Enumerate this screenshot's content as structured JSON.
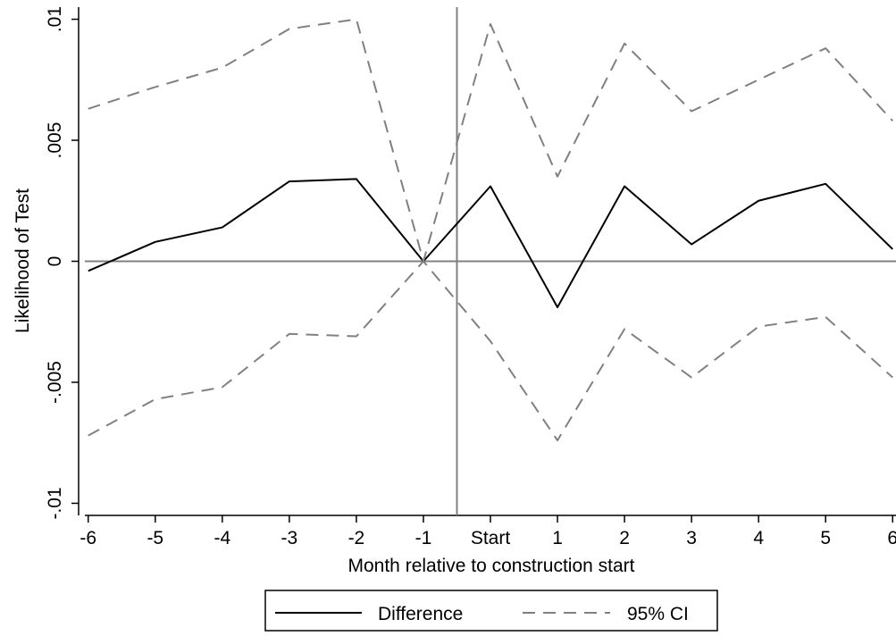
{
  "chart_data": {
    "type": "line",
    "xlabel": "Month relative to construction start",
    "ylabel": "Likelihood of Test",
    "x": [
      -6,
      -5,
      -4,
      -3,
      -2,
      -1,
      0,
      1,
      2,
      3,
      4,
      5,
      6
    ],
    "xtick_labels": [
      "-6",
      "-5",
      "-4",
      "-3",
      "-2",
      "-1",
      "Start",
      "1",
      "2",
      "3",
      "4",
      "5",
      "6"
    ],
    "ytick_values": [
      -0.01,
      -0.005,
      0,
      0.005,
      0.01
    ],
    "ytick_labels": [
      "-.01",
      "-.005",
      "0",
      ".005",
      ".01"
    ],
    "xlim": [
      -6.05,
      6.05
    ],
    "ylim": [
      -0.0105,
      0.0105
    ],
    "reference_lines": {
      "x": -0.5,
      "y": 0
    },
    "grid": false,
    "legend_position": "bottom",
    "series": [
      {
        "name": "Difference",
        "style": "solid",
        "color": "#000000",
        "values": [
          -0.0004,
          0.0008,
          0.0014,
          0.0033,
          0.0034,
          0.0,
          0.0031,
          -0.0019,
          0.0031,
          0.0007,
          0.0025,
          0.0032,
          0.0005
        ]
      },
      {
        "name": "95% CI",
        "style": "dashed",
        "color": "#808080",
        "values": [
          0.0063,
          0.0072,
          0.008,
          0.0096,
          0.01,
          0.0,
          0.0098,
          0.0035,
          0.009,
          0.0062,
          0.0075,
          0.0088,
          0.0058
        ]
      },
      {
        "style": "dashed",
        "color": "#808080",
        "values": [
          -0.0072,
          -0.0057,
          -0.0052,
          -0.003,
          -0.0031,
          0.0,
          -0.0033,
          -0.0074,
          -0.0028,
          -0.0048,
          -0.0027,
          -0.0023,
          -0.0048
        ]
      }
    ]
  }
}
